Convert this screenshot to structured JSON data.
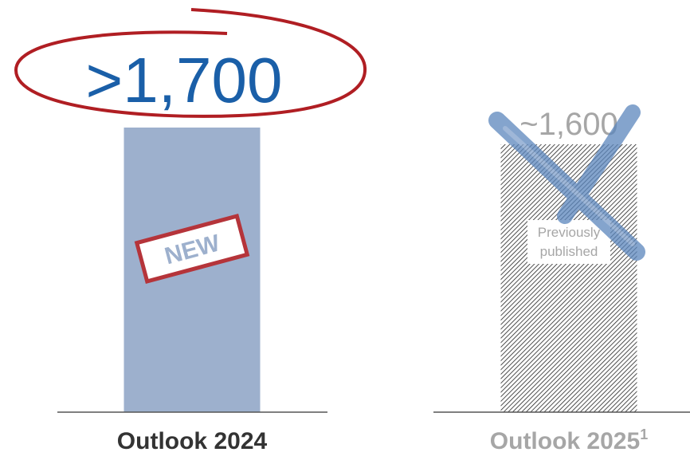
{
  "chart_data": {
    "type": "bar",
    "categories": [
      "Outlook 2024",
      "Outlook 2025"
    ],
    "category_superscripts": [
      null,
      "1"
    ],
    "values": [
      1700,
      1600
    ],
    "value_labels": [
      ">1,700",
      "~1,600"
    ],
    "bar_annotations": [
      "NEW",
      "Previously published"
    ],
    "colors": [
      "#9db0cd",
      "#222222"
    ],
    "fills": [
      "solid",
      "hatched"
    ],
    "value_label_colors": [
      "#1a5fa8",
      "#a6a6a6"
    ],
    "category_label_colors": [
      "#333333",
      "#a6a6a6"
    ]
  }
}
